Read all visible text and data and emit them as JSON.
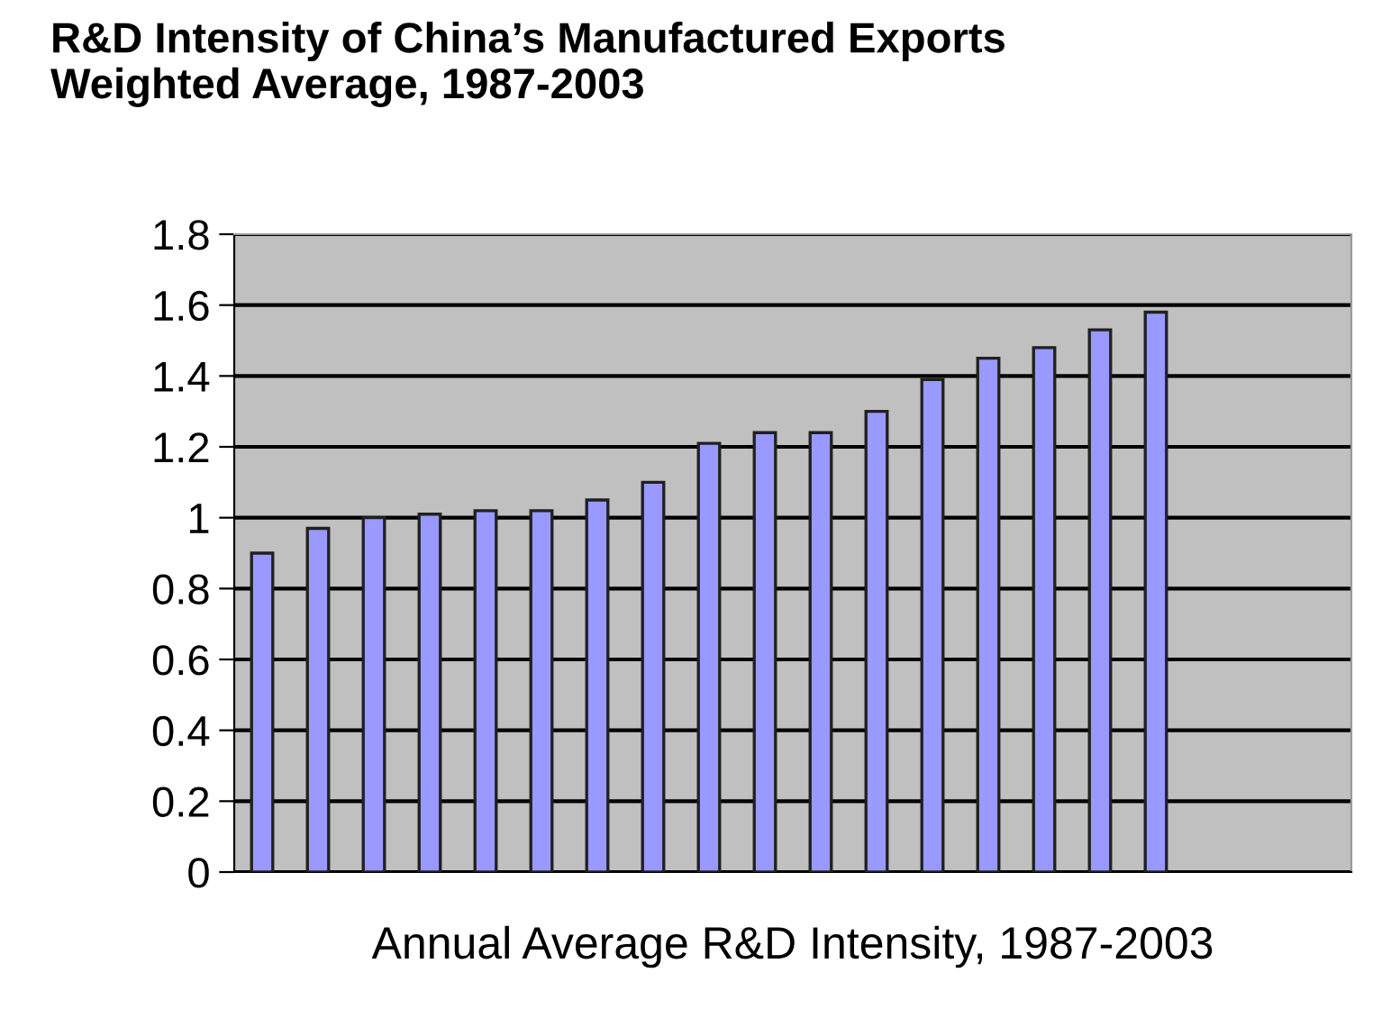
{
  "chart_data": {
    "type": "bar",
    "title": "R&D Intensity of China’s Manufactured Exports\nWeighted Average, 1987-2003",
    "xlabel": "Annual Average R&D Intensity, 1987-2003",
    "categories": [
      null,
      null,
      null,
      null,
      null,
      null,
      null,
      null,
      null,
      null,
      null,
      null,
      null,
      null,
      null,
      null,
      null,
      null,
      null,
      null
    ],
    "values": [
      0.9,
      0.97,
      1.0,
      1.01,
      1.02,
      1.02,
      1.05,
      1.1,
      1.21,
      1.24,
      1.24,
      1.3,
      1.39,
      1.45,
      1.48,
      1.53,
      1.58,
      null,
      null,
      null
    ],
    "color": "#9999ff",
    "ylim": [
      0,
      1.8
    ],
    "yticks": [
      0,
      0.2,
      0.4,
      0.6,
      0.8,
      1,
      1.2,
      1.4,
      1.6,
      1.8
    ],
    "grid": "y"
  }
}
